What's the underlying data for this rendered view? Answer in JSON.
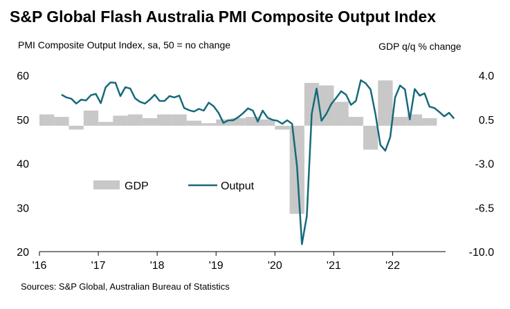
{
  "chart_data": {
    "type": "bar+line",
    "title": "S&P Global Flash Australia PMI Composite Output Index",
    "left_axis_label": "PMI Composite Output Index, sa, 50 = no change",
    "right_axis_label": "GDP q/q % change",
    "source": "Sources: S&P Global, Australian Bureau of Statistics",
    "left_ylim": [
      20,
      60
    ],
    "left_ticks": [
      "20",
      "30",
      "40",
      "50",
      "60"
    ],
    "right_ylim": [
      -10.0,
      4.0
    ],
    "right_ticks": [
      "-10.0",
      "-6.5",
      "-3.0",
      "0.5",
      "4.0"
    ],
    "x_tick_labels": [
      "'16",
      "'17",
      "'18",
      "'19",
      "'20",
      "'21",
      "'22"
    ],
    "legend": [
      {
        "name": "GDP",
        "style": "bar",
        "color": "#c8c8c8"
      },
      {
        "name": "Output",
        "style": "line",
        "color": "#16697a"
      }
    ],
    "gdp_series": {
      "name": "GDP",
      "unit": "q/q % change",
      "quarters": [
        "2016Q1",
        "2016Q2",
        "2016Q3",
        "2016Q4",
        "2017Q1",
        "2017Q2",
        "2017Q3",
        "2017Q4",
        "2018Q1",
        "2018Q2",
        "2018Q3",
        "2018Q4",
        "2019Q1",
        "2019Q2",
        "2019Q3",
        "2019Q4",
        "2020Q1",
        "2020Q2",
        "2020Q3",
        "2020Q4",
        "2021Q1",
        "2021Q2",
        "2021Q3",
        "2021Q4",
        "2022Q1",
        "2022Q2",
        "2022Q3"
      ],
      "values": [
        0.9,
        0.7,
        -0.3,
        1.2,
        0.3,
        0.8,
        0.9,
        0.6,
        0.9,
        0.9,
        0.4,
        0.2,
        0.5,
        0.6,
        0.7,
        0.5,
        -0.3,
        -7.0,
        3.4,
        3.2,
        1.9,
        0.7,
        -1.9,
        3.6,
        0.7,
        0.9,
        0.6
      ]
    },
    "output_series": {
      "name": "Output",
      "unit": "index",
      "start_month": "2016-05",
      "values": [
        55.6,
        55.0,
        54.7,
        53.6,
        54.5,
        54.3,
        55.5,
        55.8,
        53.7,
        57.3,
        58.4,
        58.3,
        55.3,
        57.3,
        57.0,
        54.8,
        54.0,
        53.6,
        54.5,
        55.6,
        54.2,
        54.2,
        55.3,
        55.0,
        55.4,
        52.6,
        52.1,
        51.8,
        52.4,
        52.0,
        53.8,
        53.0,
        51.5,
        49.2,
        49.8,
        49.8,
        50.5,
        51.4,
        52.5,
        52.0,
        49.5,
        52.0,
        50.4,
        49.9,
        49.7,
        49.0,
        49.8,
        49.0,
        39.4,
        21.7,
        28.1,
        51.3,
        57.0,
        49.7,
        51.3,
        53.5,
        54.9,
        56.4,
        55.6,
        53.3,
        54.2,
        58.9,
        58.2,
        56.8,
        51.2,
        44.2,
        42.9,
        46.0,
        55.0,
        57.7,
        56.8,
        50.0,
        56.9,
        55.4,
        55.9,
        52.9,
        52.6,
        51.7,
        50.7,
        51.5,
        50.2
      ]
    }
  }
}
